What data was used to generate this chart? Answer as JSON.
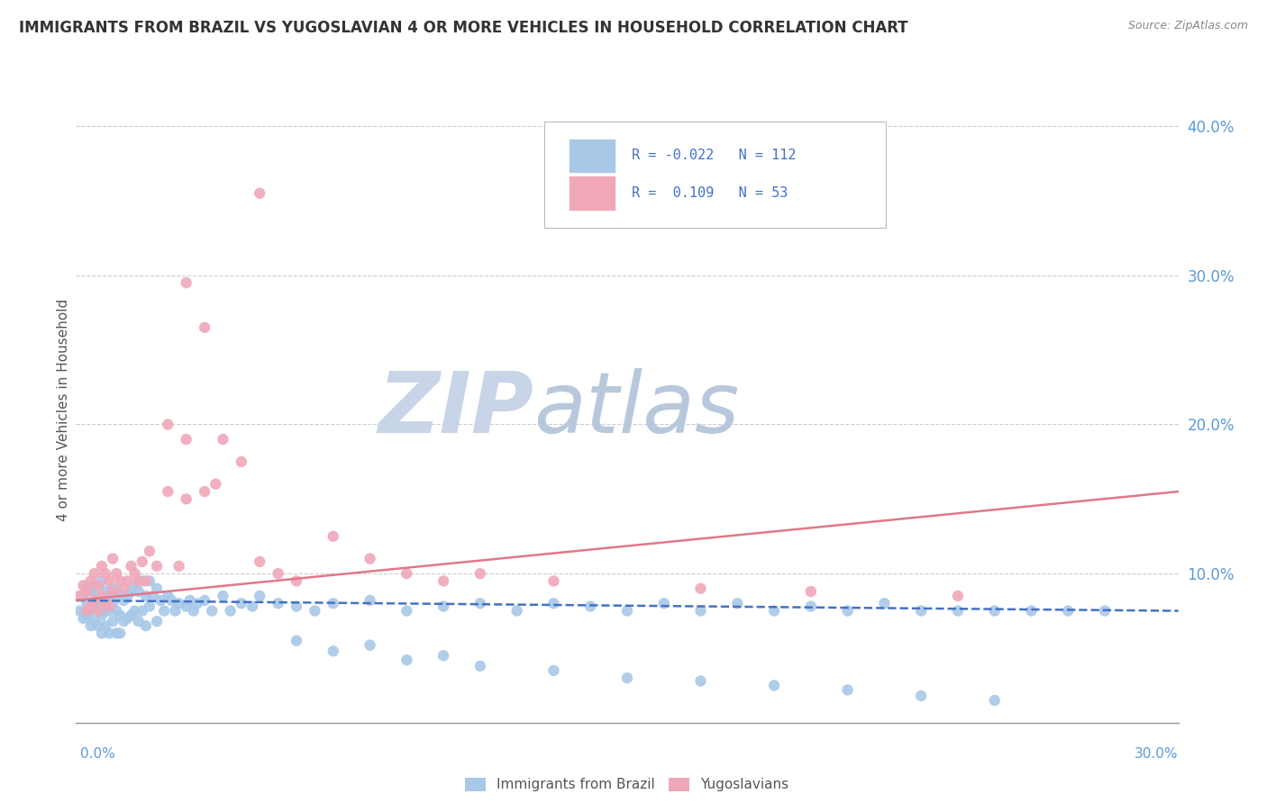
{
  "title": "IMMIGRANTS FROM BRAZIL VS YUGOSLAVIAN 4 OR MORE VEHICLES IN HOUSEHOLD CORRELATION CHART",
  "source": "Source: ZipAtlas.com",
  "ylabel": "4 or more Vehicles in Household",
  "legend_brazil_R": "-0.022",
  "legend_brazil_N": "112",
  "legend_yugo_R": "0.109",
  "legend_yugo_N": "53",
  "brazil_color": "#a8c8e8",
  "yugo_color": "#f0a8b8",
  "brazil_line_color": "#4472c4",
  "yugo_line_color": "#e07888",
  "watermark_zip_color": "#c8d4e8",
  "watermark_atlas_color": "#c0cce0",
  "background_color": "#ffffff",
  "grid_color": "#cccccc",
  "xlim": [
    0.0,
    0.3
  ],
  "ylim": [
    0.0,
    0.42
  ],
  "ytick_vals": [
    0.0,
    0.1,
    0.2,
    0.3,
    0.4
  ],
  "ytick_labels": [
    "",
    "10.0%",
    "20.0%",
    "30.0%",
    "40.0%"
  ],
  "brazil_x": [
    0.001,
    0.002,
    0.002,
    0.003,
    0.003,
    0.003,
    0.004,
    0.004,
    0.004,
    0.005,
    0.005,
    0.005,
    0.006,
    0.006,
    0.006,
    0.007,
    0.007,
    0.007,
    0.007,
    0.008,
    0.008,
    0.008,
    0.009,
    0.009,
    0.009,
    0.01,
    0.01,
    0.01,
    0.011,
    0.011,
    0.011,
    0.012,
    0.012,
    0.012,
    0.013,
    0.013,
    0.014,
    0.014,
    0.015,
    0.015,
    0.016,
    0.016,
    0.017,
    0.017,
    0.018,
    0.018,
    0.019,
    0.019,
    0.02,
    0.02,
    0.021,
    0.022,
    0.022,
    0.023,
    0.024,
    0.025,
    0.026,
    0.027,
    0.028,
    0.03,
    0.031,
    0.032,
    0.033,
    0.035,
    0.037,
    0.04,
    0.042,
    0.045,
    0.048,
    0.05,
    0.055,
    0.06,
    0.065,
    0.07,
    0.08,
    0.09,
    0.1,
    0.11,
    0.12,
    0.13,
    0.14,
    0.15,
    0.16,
    0.17,
    0.18,
    0.19,
    0.2,
    0.21,
    0.22,
    0.23,
    0.24,
    0.25,
    0.26,
    0.27,
    0.28,
    0.06,
    0.07,
    0.09,
    0.11,
    0.13,
    0.15,
    0.17,
    0.19,
    0.21,
    0.23,
    0.25,
    0.08,
    0.1
  ],
  "brazil_y": [
    0.075,
    0.085,
    0.07,
    0.09,
    0.08,
    0.072,
    0.088,
    0.075,
    0.065,
    0.092,
    0.078,
    0.068,
    0.085,
    0.075,
    0.065,
    0.095,
    0.082,
    0.072,
    0.06,
    0.088,
    0.075,
    0.065,
    0.085,
    0.075,
    0.06,
    0.09,
    0.08,
    0.068,
    0.088,
    0.075,
    0.06,
    0.085,
    0.072,
    0.06,
    0.082,
    0.068,
    0.085,
    0.07,
    0.088,
    0.072,
    0.092,
    0.075,
    0.088,
    0.068,
    0.095,
    0.075,
    0.085,
    0.065,
    0.095,
    0.078,
    0.085,
    0.09,
    0.068,
    0.082,
    0.075,
    0.085,
    0.082,
    0.075,
    0.08,
    0.078,
    0.082,
    0.075,
    0.08,
    0.082,
    0.075,
    0.085,
    0.075,
    0.08,
    0.078,
    0.085,
    0.08,
    0.078,
    0.075,
    0.08,
    0.082,
    0.075,
    0.078,
    0.08,
    0.075,
    0.08,
    0.078,
    0.075,
    0.08,
    0.075,
    0.08,
    0.075,
    0.078,
    0.075,
    0.08,
    0.075,
    0.075,
    0.075,
    0.075,
    0.075,
    0.075,
    0.055,
    0.048,
    0.042,
    0.038,
    0.035,
    0.03,
    0.028,
    0.025,
    0.022,
    0.018,
    0.015,
    0.052,
    0.045
  ],
  "yugo_x": [
    0.001,
    0.002,
    0.003,
    0.003,
    0.004,
    0.004,
    0.005,
    0.005,
    0.006,
    0.006,
    0.007,
    0.007,
    0.008,
    0.008,
    0.009,
    0.009,
    0.01,
    0.01,
    0.011,
    0.012,
    0.013,
    0.014,
    0.015,
    0.016,
    0.017,
    0.018,
    0.019,
    0.02,
    0.022,
    0.025,
    0.028,
    0.03,
    0.035,
    0.038,
    0.04,
    0.045,
    0.05,
    0.055,
    0.06,
    0.07,
    0.08,
    0.09,
    0.1,
    0.11,
    0.13,
    0.17,
    0.2,
    0.24,
    0.03,
    0.035,
    0.05,
    0.025,
    0.03
  ],
  "yugo_y": [
    0.085,
    0.092,
    0.088,
    0.075,
    0.095,
    0.078,
    0.1,
    0.082,
    0.092,
    0.075,
    0.105,
    0.085,
    0.1,
    0.08,
    0.095,
    0.078,
    0.11,
    0.088,
    0.1,
    0.095,
    0.09,
    0.095,
    0.105,
    0.1,
    0.095,
    0.108,
    0.095,
    0.115,
    0.105,
    0.155,
    0.105,
    0.15,
    0.155,
    0.16,
    0.19,
    0.175,
    0.108,
    0.1,
    0.095,
    0.125,
    0.11,
    0.1,
    0.095,
    0.1,
    0.095,
    0.09,
    0.088,
    0.085,
    0.295,
    0.265,
    0.355,
    0.2,
    0.19
  ],
  "brazil_line_x": [
    0.0,
    0.3
  ],
  "brazil_line_y": [
    0.082,
    0.075
  ],
  "yugo_line_x": [
    0.0,
    0.3
  ],
  "yugo_line_y": [
    0.082,
    0.155
  ]
}
